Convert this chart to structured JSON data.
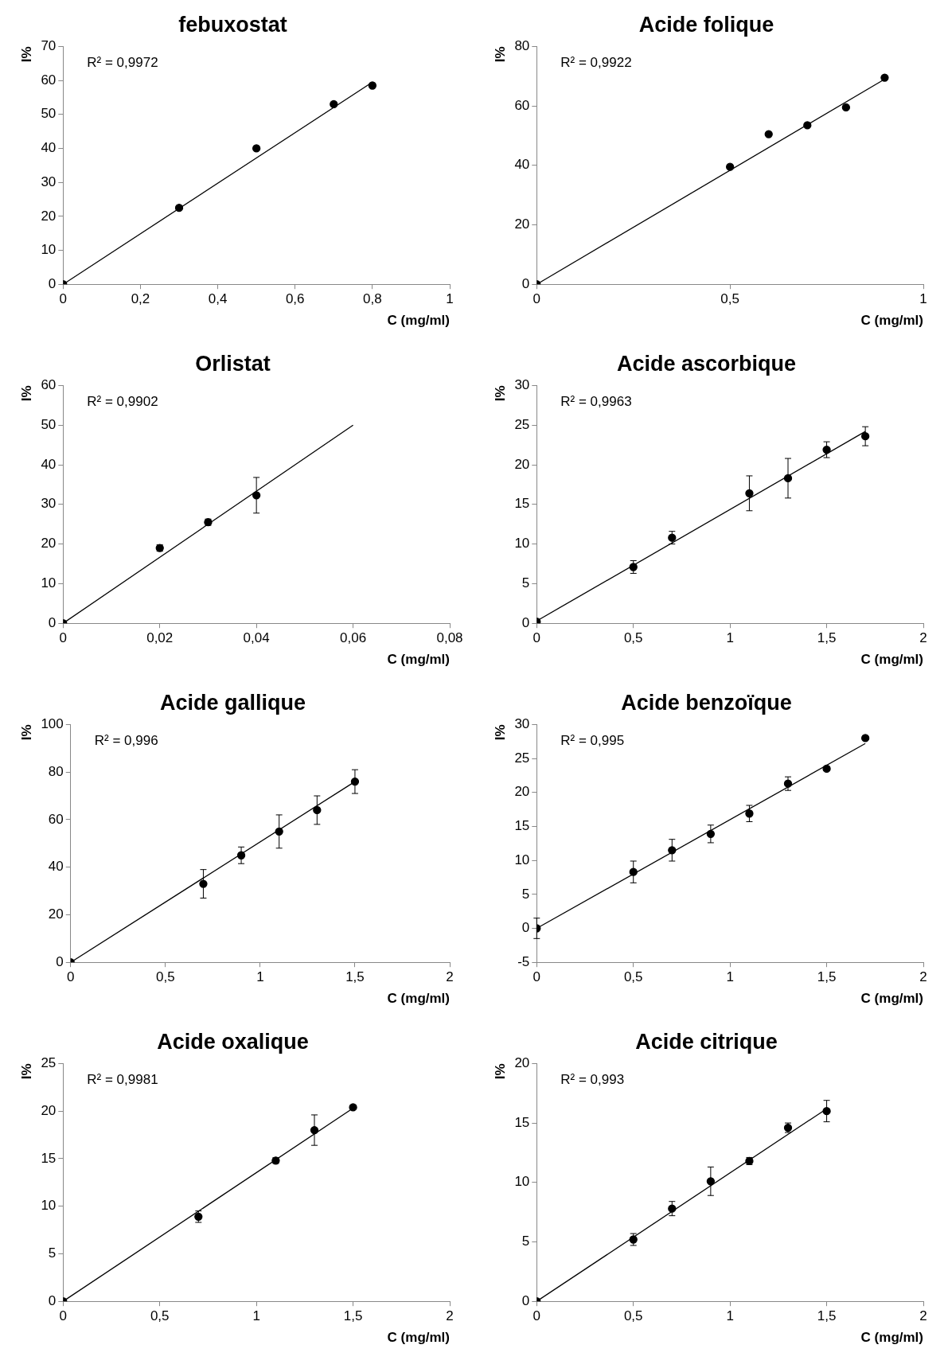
{
  "chart_data": [
    {
      "type": "scatter",
      "title": "febuxostat",
      "xlabel": "C (mg/ml)",
      "ylabel": "I%",
      "annotations": [
        "R² = 0,9972"
      ],
      "grid": false,
      "xlim": [
        0,
        1
      ],
      "xticks": [
        0,
        {
          "value": 0.2,
          "label": "0,2"
        },
        {
          "value": 0.4,
          "label": "0,4"
        },
        {
          "value": 0.6,
          "label": "0,6"
        },
        {
          "value": 0.8,
          "label": "0,8"
        },
        1
      ],
      "ylim": [
        0,
        70
      ],
      "yticks": [
        0,
        10,
        20,
        30,
        40,
        50,
        60,
        70
      ],
      "series": [
        {
          "type": "scatter",
          "marker": "circle",
          "color": "#000000",
          "x": [
            0,
            0.3,
            0.5,
            0.7,
            0.8
          ],
          "values": [
            0,
            22.5,
            40,
            53,
            58.5
          ]
        },
        {
          "type": "line",
          "marker": "none",
          "color": "#000000",
          "x": [
            0,
            0.8
          ],
          "values": [
            0,
            59.5
          ]
        }
      ]
    },
    {
      "type": "scatter",
      "title": "Acide folique",
      "xlabel": "C (mg/ml)",
      "ylabel": "I%",
      "annotations": [
        "R² = 0,9922"
      ],
      "grid": false,
      "xlim": [
        0,
        1
      ],
      "xticks": [
        0,
        {
          "value": 0.5,
          "label": "0,5"
        },
        1
      ],
      "ylim": [
        0,
        80
      ],
      "yticks": [
        0,
        20,
        40,
        60,
        80
      ],
      "series": [
        {
          "type": "scatter",
          "marker": "circle",
          "color": "#000000",
          "x": [
            0,
            0.5,
            0.6,
            0.7,
            0.8,
            0.9
          ],
          "values": [
            0,
            39.5,
            50.5,
            53.5,
            59.5,
            69.5
          ]
        },
        {
          "type": "line",
          "marker": "none",
          "color": "#000000",
          "x": [
            0,
            0.9
          ],
          "values": [
            0,
            69
          ]
        }
      ]
    },
    {
      "type": "scatter",
      "title": "Orlistat",
      "xlabel": "C (mg/ml)",
      "ylabel": "I%",
      "annotations": [
        "R² = 0,9902"
      ],
      "grid": false,
      "xlim": [
        0,
        0.08
      ],
      "xticks": [
        0,
        {
          "value": 0.02,
          "label": "0,02"
        },
        {
          "value": 0.04,
          "label": "0,04"
        },
        {
          "value": 0.06,
          "label": "0,06"
        },
        {
          "value": 0.08,
          "label": "0,08"
        }
      ],
      "ylim": [
        0,
        60
      ],
      "yticks": [
        0,
        10,
        20,
        30,
        40,
        50,
        60
      ],
      "series": [
        {
          "type": "scatter",
          "marker": "circle",
          "color": "#000000",
          "x": [
            0,
            0.02,
            0.03,
            0.04
          ],
          "values": [
            0,
            19,
            25.5,
            32.3
          ],
          "errors": [
            null,
            0.8,
            0.8,
            4.5
          ]
        },
        {
          "type": "line",
          "marker": "none",
          "color": "#000000",
          "x": [
            0,
            0.06
          ],
          "values": [
            0,
            50
          ]
        }
      ]
    },
    {
      "type": "scatter",
      "title": "Acide ascorbique",
      "xlabel": "C (mg/ml)",
      "ylabel": "I%",
      "annotations": [
        "R² = 0,9963"
      ],
      "grid": false,
      "xlim": [
        0,
        2
      ],
      "xticks": [
        0,
        {
          "value": 0.5,
          "label": "0,5"
        },
        1,
        {
          "value": 1.5,
          "label": "1,5"
        },
        2
      ],
      "ylim": [
        0,
        30
      ],
      "yticks": [
        0,
        5,
        10,
        15,
        20,
        25,
        30
      ],
      "series": [
        {
          "type": "scatter",
          "marker": "circle",
          "color": "#000000",
          "x": [
            0,
            0.5,
            0.7,
            1.1,
            1.3,
            1.5,
            1.7
          ],
          "values": [
            0.2,
            7.1,
            10.8,
            16.4,
            18.3,
            21.9,
            23.6
          ],
          "errors": [
            null,
            0.8,
            0.8,
            2.2,
            2.5,
            1,
            1.2
          ]
        },
        {
          "type": "line",
          "marker": "none",
          "color": "#000000",
          "x": [
            0,
            1.7
          ],
          "values": [
            0.3,
            24.2
          ]
        }
      ]
    },
    {
      "type": "scatter",
      "title": "Acide gallique",
      "xlabel": "C (mg/ml)",
      "ylabel": "I%",
      "annotations": [
        "R² = 0,996"
      ],
      "grid": false,
      "xlim": [
        0,
        2
      ],
      "xticks": [
        0,
        {
          "value": 0.5,
          "label": "0,5"
        },
        1,
        {
          "value": 1.5,
          "label": "1,5"
        },
        2
      ],
      "ylim": [
        0,
        100
      ],
      "yticks": [
        0,
        20,
        40,
        60,
        80,
        100
      ],
      "series": [
        {
          "type": "scatter",
          "marker": "circle",
          "color": "#000000",
          "x": [
            0,
            0.7,
            0.9,
            1.1,
            1.3,
            1.5
          ],
          "values": [
            0,
            33,
            45,
            55,
            64,
            76
          ],
          "errors": [
            null,
            6,
            3.5,
            7,
            6,
            5
          ]
        },
        {
          "type": "line",
          "marker": "none",
          "color": "#000000",
          "x": [
            0,
            1.5
          ],
          "values": [
            0,
            76
          ]
        }
      ]
    },
    {
      "type": "scatter",
      "title": "Acide benzoïque",
      "xlabel": "C (mg/ml)",
      "ylabel": "I%",
      "annotations": [
        "R² = 0,995"
      ],
      "grid": false,
      "xlim": [
        0,
        2
      ],
      "xticks": [
        0,
        {
          "value": 0.5,
          "label": "0,5"
        },
        1,
        {
          "value": 1.5,
          "label": "1,5"
        },
        2
      ],
      "ylim": [
        -5,
        30
      ],
      "yticks": [
        -5,
        0,
        5,
        10,
        15,
        20,
        25,
        30
      ],
      "series": [
        {
          "type": "scatter",
          "marker": "circle",
          "color": "#000000",
          "x": [
            0,
            0.5,
            0.7,
            0.9,
            1.1,
            1.3,
            1.5,
            1.7
          ],
          "values": [
            0,
            8.3,
            11.5,
            13.9,
            16.9,
            21.3,
            23.5,
            28
          ],
          "errors": [
            1.5,
            1.6,
            1.6,
            1.3,
            1.2,
            1,
            0.3,
            null
          ]
        },
        {
          "type": "line",
          "marker": "none",
          "color": "#000000",
          "x": [
            0,
            1.7
          ],
          "values": [
            0,
            27.2
          ]
        }
      ]
    },
    {
      "type": "scatter",
      "title": "Acide oxalique",
      "xlabel": "C (mg/ml)",
      "ylabel": "I%",
      "annotations": [
        "R² = 0,9981"
      ],
      "grid": false,
      "xlim": [
        0,
        2
      ],
      "xticks": [
        0,
        {
          "value": 0.5,
          "label": "0,5"
        },
        1,
        {
          "value": 1.5,
          "label": "1,5"
        },
        2
      ],
      "ylim": [
        0,
        25
      ],
      "yticks": [
        0,
        5,
        10,
        15,
        20,
        25
      ],
      "series": [
        {
          "type": "scatter",
          "marker": "circle",
          "color": "#000000",
          "x": [
            0,
            0.7,
            1.1,
            1.3,
            1.5
          ],
          "values": [
            0,
            8.9,
            14.8,
            18,
            20.4
          ],
          "errors": [
            null,
            0.6,
            0.3,
            1.6,
            null
          ]
        },
        {
          "type": "line",
          "marker": "none",
          "color": "#000000",
          "x": [
            0,
            1.5
          ],
          "values": [
            0,
            20.3
          ]
        }
      ]
    },
    {
      "type": "scatter",
      "title": "Acide citrique",
      "xlabel": "C (mg/ml)",
      "ylabel": "I%",
      "annotations": [
        "R² = 0,993"
      ],
      "grid": false,
      "xlim": [
        0,
        2
      ],
      "xticks": [
        0,
        {
          "value": 0.5,
          "label": "0,5"
        },
        1,
        {
          "value": 1.5,
          "label": "1,5"
        },
        2
      ],
      "ylim": [
        0,
        20
      ],
      "yticks": [
        0,
        5,
        10,
        15,
        20
      ],
      "series": [
        {
          "type": "scatter",
          "marker": "circle",
          "color": "#000000",
          "x": [
            0,
            0.5,
            0.7,
            0.9,
            1.1,
            1.3,
            1.5
          ],
          "values": [
            0,
            5.2,
            7.8,
            10.1,
            11.8,
            14.6,
            16
          ],
          "errors": [
            null,
            0.5,
            0.6,
            1.2,
            0.3,
            0.4,
            0.9
          ]
        },
        {
          "type": "line",
          "marker": "none",
          "color": "#000000",
          "x": [
            0,
            1.5
          ],
          "values": [
            0,
            16.2
          ]
        }
      ]
    }
  ]
}
